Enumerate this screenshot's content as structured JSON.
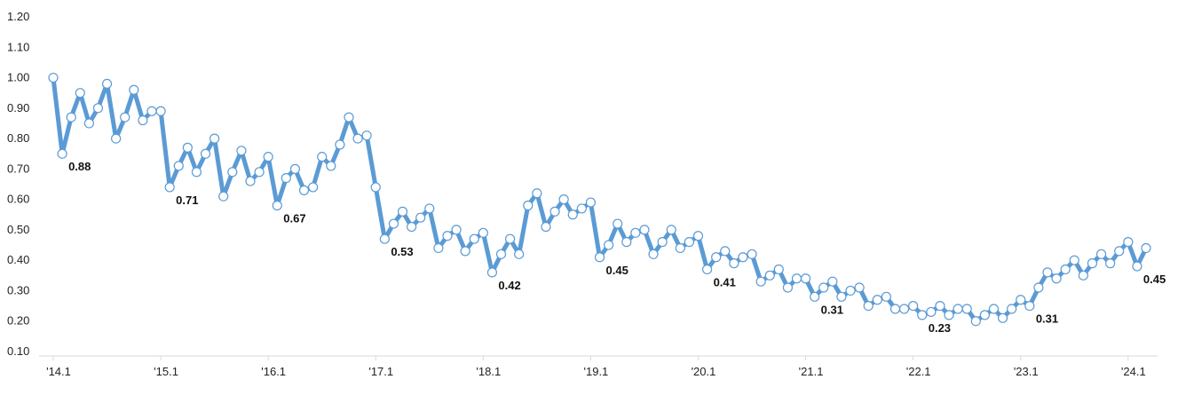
{
  "chart_data": {
    "type": "line",
    "title": "",
    "xlabel": "",
    "ylabel": "",
    "ylim": [
      0.1,
      1.2
    ],
    "yticks": [
      "0.10",
      "0.20",
      "0.30",
      "0.40",
      "0.50",
      "0.60",
      "0.70",
      "0.80",
      "0.90",
      "1.00",
      "1.10",
      "1.20"
    ],
    "x_tick_labels": [
      "'14.1",
      "'15.1",
      "'16.1",
      "'17.1",
      "'18.1",
      "'19.1",
      "'20.1",
      "'21.1",
      "'22.1",
      "'23.1",
      "'24.1"
    ],
    "x_tick_index": [
      0,
      12,
      24,
      36,
      48,
      60,
      72,
      84,
      96,
      108,
      120
    ],
    "grid": false,
    "series_color": "#5b9bd5",
    "marker_fill": "#ffffff",
    "series": [
      {
        "values": [
          1.0,
          0.75,
          0.87,
          0.95,
          0.85,
          0.9,
          0.98,
          0.8,
          0.87,
          0.96,
          0.86,
          0.89,
          0.89,
          0.64,
          0.71,
          0.77,
          0.69,
          0.75,
          0.8,
          0.61,
          0.69,
          0.76,
          0.66,
          0.69,
          0.74,
          0.58,
          0.67,
          0.7,
          0.63,
          0.64,
          0.74,
          0.71,
          0.78,
          0.87,
          0.8,
          0.81,
          0.64,
          0.47,
          0.52,
          0.56,
          0.51,
          0.54,
          0.57,
          0.44,
          0.48,
          0.5,
          0.43,
          0.47,
          0.49,
          0.36,
          0.42,
          0.47,
          0.42,
          0.58,
          0.62,
          0.51,
          0.56,
          0.6,
          0.55,
          0.57,
          0.59,
          0.41,
          0.45,
          0.52,
          0.46,
          0.49,
          0.5,
          0.42,
          0.46,
          0.5,
          0.44,
          0.46,
          0.48,
          0.37,
          0.41,
          0.43,
          0.39,
          0.41,
          0.42,
          0.33,
          0.35,
          0.37,
          0.31,
          0.34,
          0.34,
          0.28,
          0.31,
          0.33,
          0.28,
          0.3,
          0.31,
          0.25,
          0.27,
          0.28,
          0.24,
          0.24,
          0.25,
          0.22,
          0.23,
          0.25,
          0.22,
          0.24,
          0.24,
          0.2,
          0.22,
          0.24,
          0.21,
          0.24,
          0.27,
          0.25,
          0.31,
          0.36,
          0.34,
          0.37,
          0.4,
          0.35,
          0.39,
          0.42,
          0.39,
          0.43,
          0.46,
          0.38,
          0.44
        ]
      }
    ],
    "data_labels": [
      {
        "index": 1,
        "text": "0.88"
      },
      {
        "index": 13,
        "text": "0.71"
      },
      {
        "index": 25,
        "text": "0.67"
      },
      {
        "index": 37,
        "text": "0.53"
      },
      {
        "index": 49,
        "text": "0.42"
      },
      {
        "index": 61,
        "text": "0.45"
      },
      {
        "index": 73,
        "text": "0.41"
      },
      {
        "index": 85,
        "text": "0.31"
      },
      {
        "index": 97,
        "text": "0.23"
      },
      {
        "index": 109,
        "text": "0.31"
      },
      {
        "index": 121,
        "text": "0.45"
      }
    ]
  }
}
